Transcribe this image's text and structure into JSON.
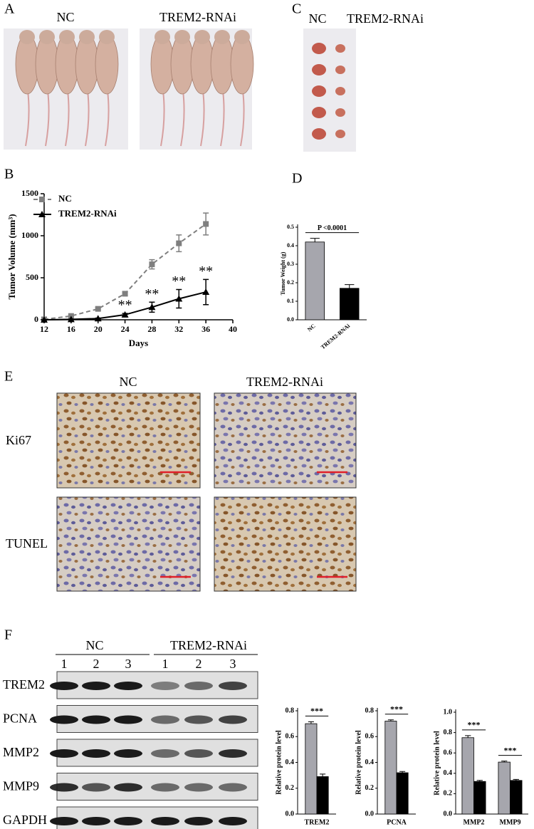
{
  "panels": {
    "A": {
      "label": "A",
      "groups": [
        "NC",
        "TREM2-RNAi"
      ]
    },
    "B": {
      "label": "B"
    },
    "C": {
      "label": "C",
      "groups": [
        "NC",
        "TREM2-RNAi"
      ]
    },
    "D": {
      "label": "D"
    },
    "E": {
      "label": "E",
      "groups": [
        "NC",
        "TREM2-RNAi"
      ],
      "rows": [
        "Ki67",
        "TUNEL"
      ]
    },
    "F": {
      "label": "F",
      "groups": [
        "NC",
        "TREM2-RNAi"
      ],
      "lanes": [
        "1",
        "2",
        "3",
        "1",
        "2",
        "3"
      ],
      "proteins": [
        "TREM2",
        "PCNA",
        "MMP2",
        "MMP9",
        "GAPDH"
      ]
    }
  },
  "chart_data": [
    {
      "type": "line",
      "ylabel": "Tumor Volume (mm³)",
      "xlabel": "Days",
      "x": [
        12,
        16,
        20,
        24,
        28,
        32,
        36
      ],
      "xlim": [
        12,
        40
      ],
      "xticks": [
        12,
        16,
        20,
        24,
        28,
        32,
        36,
        40
      ],
      "ylim": [
        0,
        1500
      ],
      "yticks": [
        0,
        500,
        1000,
        1500
      ],
      "legend": "upper left",
      "series": [
        {
          "name": "NC",
          "color": "#7f7f7f",
          "line_style": "dashed",
          "marker": "square",
          "values": [
            5,
            45,
            130,
            310,
            660,
            910,
            1140
          ],
          "errors": [
            0,
            10,
            15,
            20,
            55,
            100,
            130
          ]
        },
        {
          "name": "TREM2-RNAi",
          "color": "#000000",
          "line_style": "solid",
          "marker": "triangle",
          "values": [
            0,
            5,
            15,
            60,
            150,
            250,
            330
          ],
          "errors": [
            0,
            2,
            5,
            15,
            60,
            110,
            150
          ]
        }
      ],
      "annotations": [
        {
          "text": "**",
          "x": 24
        },
        {
          "text": "**",
          "x": 28
        },
        {
          "text": "**",
          "x": 32
        },
        {
          "text": "**",
          "x": 36
        }
      ]
    },
    {
      "type": "bar",
      "ylabel": "Tumor Weight (g)",
      "categories": [
        "NC",
        "TREM2-RNAi"
      ],
      "values": [
        0.42,
        0.17
      ],
      "errors": [
        0.02,
        0.02
      ],
      "colors": [
        "#a6a6ad",
        "#000000"
      ],
      "ylim": [
        0,
        0.5
      ],
      "yticks": [
        {
          "value": 0,
          "label": "0.0"
        },
        0.1,
        0.2,
        0.3,
        0.4,
        0.5
      ],
      "annotations": [
        {
          "text": "P <0.0001",
          "categories": [
            0,
            1
          ]
        }
      ]
    },
    {
      "type": "bar",
      "ylabel": "Relative protein level",
      "categories": [
        "TREM2"
      ],
      "series": [
        {
          "color": "#a6a6ad",
          "values": [
            0.7
          ],
          "errors": [
            0.015
          ]
        },
        {
          "color": "#000000",
          "values": [
            0.29
          ],
          "errors": [
            0.02
          ]
        }
      ],
      "ylim": [
        0,
        0.8
      ],
      "yticks": [
        {
          "value": 0,
          "label": "0.0"
        },
        0.2,
        0.4,
        0.6,
        0.8
      ],
      "annotations": [
        {
          "text": "***",
          "categories": [
            0
          ]
        }
      ]
    },
    {
      "type": "bar",
      "ylabel": "Relative protein level",
      "categories": [
        "PCNA"
      ],
      "series": [
        {
          "color": "#a6a6ad",
          "values": [
            0.72
          ],
          "errors": [
            0.01
          ]
        },
        {
          "color": "#000000",
          "values": [
            0.32
          ],
          "errors": [
            0.01
          ]
        }
      ],
      "ylim": [
        0,
        0.8
      ],
      "yticks": [
        {
          "value": 0,
          "label": "0.0"
        },
        0.2,
        0.4,
        0.6,
        0.8
      ],
      "annotations": [
        {
          "text": "***",
          "categories": [
            0
          ]
        }
      ]
    },
    {
      "type": "bar",
      "ylabel": "Relative protein level",
      "categories": [
        "MMP2",
        "MMP9"
      ],
      "series": [
        {
          "color": "#a6a6ad",
          "values": [
            0.75,
            0.51
          ],
          "errors": [
            0.02,
            0.01
          ]
        },
        {
          "color": "#000000",
          "values": [
            0.32,
            0.33
          ],
          "errors": [
            0.01,
            0.01
          ]
        }
      ],
      "ylim": [
        0,
        1
      ],
      "yticks": [
        {
          "value": 0,
          "label": "0.0"
        },
        0.2,
        0.4,
        0.6,
        0.8,
        {
          "value": 1,
          "label": "1.0"
        }
      ],
      "annotations": [
        {
          "text": "***",
          "categories": [
            0
          ]
        },
        {
          "text": "***",
          "categories": [
            1
          ]
        }
      ]
    }
  ]
}
